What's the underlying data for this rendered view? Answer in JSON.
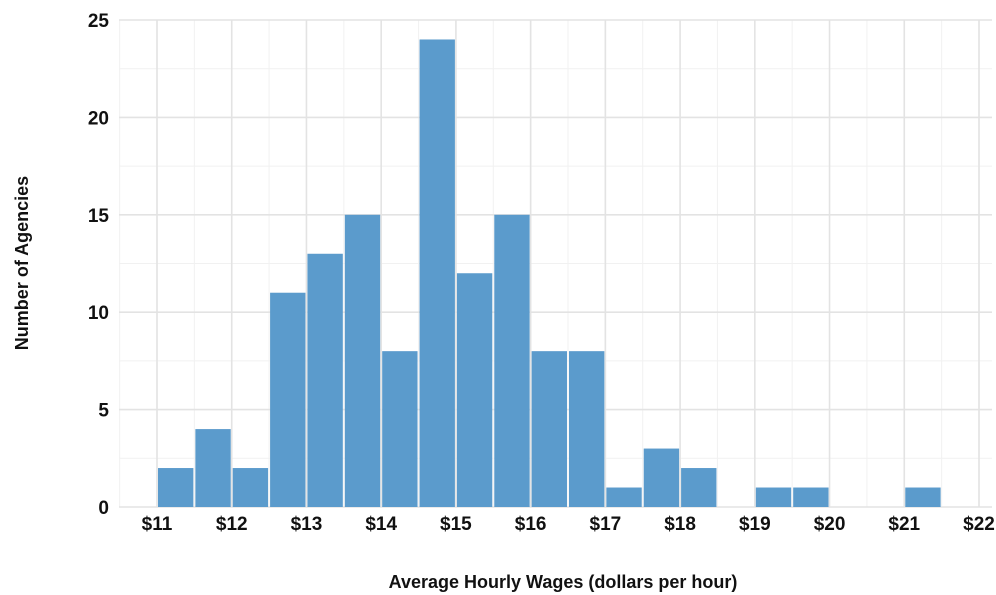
{
  "chart_data": {
    "type": "bar",
    "title": "",
    "xlabel": "Average Hourly Wages (dollars per hour)",
    "ylabel": "Number of Agencies",
    "xlim": [
      11,
      22
    ],
    "ylim": [
      0,
      25
    ],
    "bin_width": 0.5,
    "x_ticks": [
      11,
      12,
      13,
      14,
      15,
      16,
      17,
      18,
      19,
      20,
      21,
      22
    ],
    "x_tick_labels": [
      "$11",
      "$12",
      "$13",
      "$14",
      "$15",
      "$16",
      "$17",
      "$18",
      "$19",
      "$20",
      "$21",
      "$22"
    ],
    "y_ticks": [
      0,
      5,
      10,
      15,
      20,
      25
    ],
    "y_tick_labels": [
      "0",
      "5",
      "10",
      "15",
      "20",
      "25"
    ],
    "grid": true,
    "bar_color": "#5b9bcc",
    "bins": [
      {
        "start": 11.0,
        "end": 11.5,
        "count": 2
      },
      {
        "start": 11.5,
        "end": 12.0,
        "count": 4
      },
      {
        "start": 12.0,
        "end": 12.5,
        "count": 2
      },
      {
        "start": 12.5,
        "end": 13.0,
        "count": 11
      },
      {
        "start": 13.0,
        "end": 13.5,
        "count": 13
      },
      {
        "start": 13.5,
        "end": 14.0,
        "count": 15
      },
      {
        "start": 14.0,
        "end": 14.5,
        "count": 8
      },
      {
        "start": 14.5,
        "end": 15.0,
        "count": 24
      },
      {
        "start": 15.0,
        "end": 15.5,
        "count": 12
      },
      {
        "start": 15.5,
        "end": 16.0,
        "count": 15
      },
      {
        "start": 16.0,
        "end": 16.5,
        "count": 8
      },
      {
        "start": 16.5,
        "end": 17.0,
        "count": 8
      },
      {
        "start": 17.0,
        "end": 17.5,
        "count": 1
      },
      {
        "start": 17.5,
        "end": 18.0,
        "count": 3
      },
      {
        "start": 18.0,
        "end": 18.5,
        "count": 2
      },
      {
        "start": 19.0,
        "end": 19.5,
        "count": 1
      },
      {
        "start": 19.5,
        "end": 20.0,
        "count": 1
      },
      {
        "start": 21.0,
        "end": 21.5,
        "count": 1
      }
    ]
  }
}
